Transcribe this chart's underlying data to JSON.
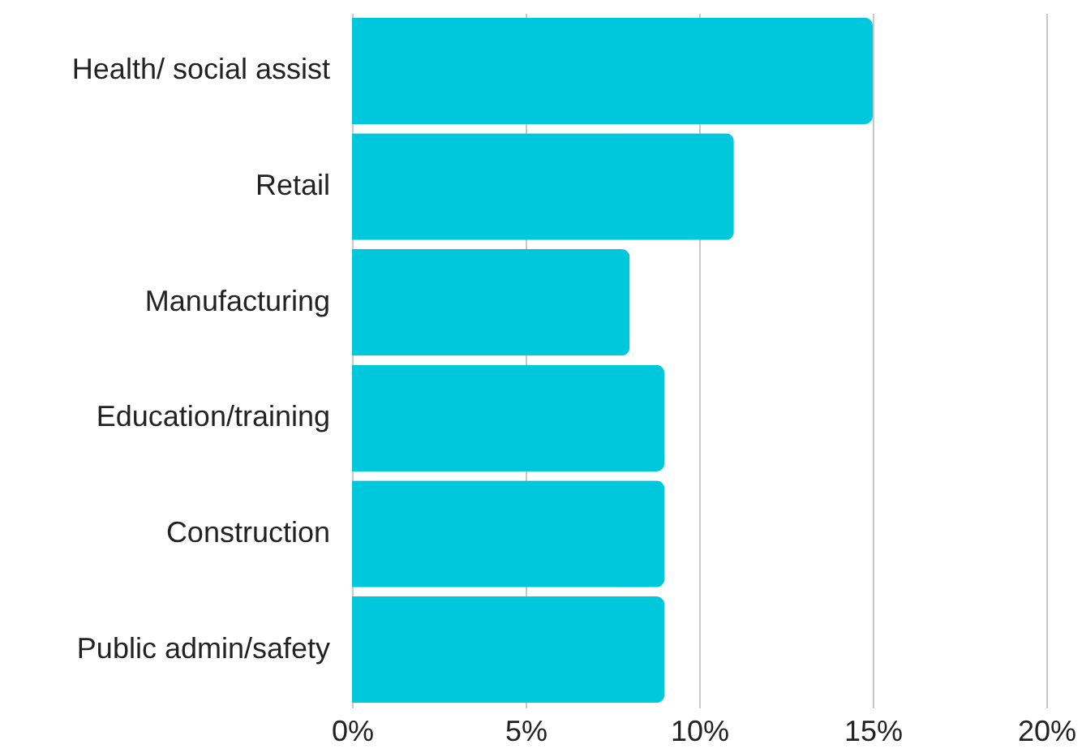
{
  "chart_data": {
    "type": "bar",
    "orientation": "horizontal",
    "categories": [
      "Health/ social assist",
      "Retail",
      "Manufacturing",
      "Education/training",
      "Construction",
      "Public admin/safety"
    ],
    "values": [
      15,
      11,
      8,
      9,
      9,
      9
    ],
    "color": "#00c8dc",
    "xlim": [
      0,
      20
    ],
    "xticks": [
      {
        "value": 0,
        "label": "0%"
      },
      {
        "value": 5,
        "label": "5%"
      },
      {
        "value": 10,
        "label": "10%"
      },
      {
        "value": 15,
        "label": "15%"
      },
      {
        "value": 20,
        "label": "20%"
      }
    ],
    "grid": "x"
  }
}
